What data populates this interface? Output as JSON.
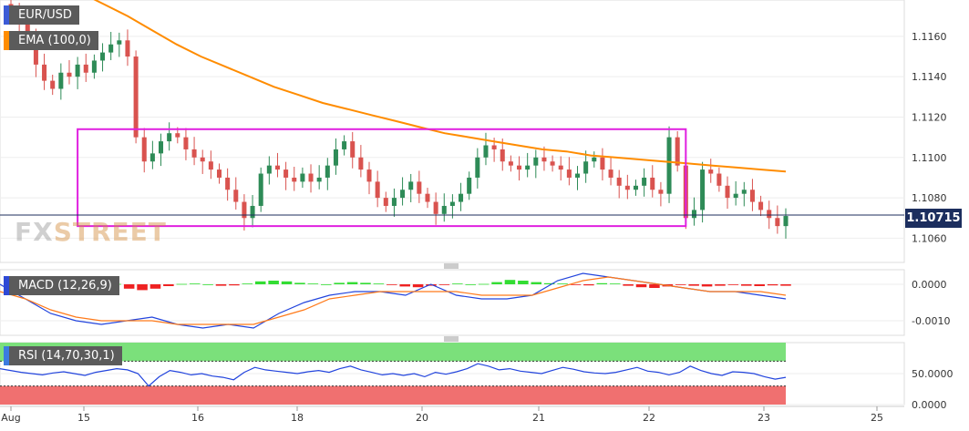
{
  "chart_data": {
    "type": "candlestick",
    "symbol": "EUR/USD",
    "indicator_label": "EMA (100,0)",
    "macd_label": "MACD (12,26,9)",
    "rsi_label": "RSI (14,70,30,1)",
    "last_price": "1.10715",
    "watermark": {
      "part1": "FX",
      "part2": "STREET"
    },
    "x_ticks": [
      "Aug",
      "15",
      "16",
      "18",
      "20",
      "21",
      "22",
      "23",
      "25"
    ],
    "price_axis": {
      "ylim": [
        1.1048,
        1.1178
      ],
      "ticks": [
        "1.1060",
        "1.1080",
        "1.1100",
        "1.1120",
        "1.1140",
        "1.1160"
      ]
    },
    "macd_axis": {
      "ylim": [
        -0.0014,
        0.0004
      ],
      "ticks": [
        "0.0000",
        "-0.0010"
      ]
    },
    "rsi_axis": {
      "ylim": [
        0,
        100
      ],
      "ticks": [
        "50.0000",
        "0.0000"
      ],
      "overbought": 70,
      "oversold": 30
    },
    "range_box": {
      "start": 8,
      "end": 81,
      "high": 1.1114,
      "low": 1.1066
    },
    "close_series": [
      1.1172,
      1.1168,
      1.116,
      1.1146,
      1.1138,
      1.1134,
      1.1142,
      1.114,
      1.1146,
      1.1142,
      1.1148,
      1.1152,
      1.1156,
      1.1158,
      1.115,
      1.111,
      1.1098,
      1.1102,
      1.1108,
      1.1112,
      1.111,
      1.1104,
      1.11,
      1.1098,
      1.1094,
      1.109,
      1.1084,
      1.1078,
      1.107,
      1.1076,
      1.1092,
      1.1096,
      1.1094,
      1.109,
      1.1088,
      1.1092,
      1.1088,
      1.109,
      1.1096,
      1.1104,
      1.1108,
      1.11,
      1.1094,
      1.1088,
      1.108,
      1.1076,
      1.108,
      1.1084,
      1.1088,
      1.1082,
      1.1078,
      1.1072,
      1.1076,
      1.1078,
      1.1082,
      1.109,
      1.11,
      1.1106,
      1.1104,
      1.1098,
      1.1096,
      1.1094,
      1.1096,
      1.11,
      1.1098,
      1.1096,
      1.1094,
      1.109,
      1.1092,
      1.1098,
      1.11,
      1.1094,
      1.109,
      1.1086,
      1.1084,
      1.1086,
      1.109,
      1.1084,
      1.1082,
      1.111,
      1.1096,
      1.107,
      1.1074,
      1.1094,
      1.1092,
      1.1086,
      1.108,
      1.1082,
      1.1084,
      1.1078,
      1.1074,
      1.107,
      1.1066,
      1.1071
    ],
    "ema_series": [
      1.1188,
      1.1182,
      1.1176,
      1.117,
      1.1163,
      1.1156,
      1.115,
      1.1145,
      1.114,
      1.1135,
      1.1131,
      1.1127,
      1.1124,
      1.1121,
      1.1118,
      1.1115,
      1.1112,
      1.111,
      1.1108,
      1.1106,
      1.1104,
      1.1103,
      1.1101,
      1.11,
      1.1099,
      1.1098,
      1.1097,
      1.1096,
      1.1095,
      1.1094,
      1.1093
    ],
    "macd_hist": [
      5e-05,
      3e-05,
      -1e-05,
      -4e-05,
      -3e-05,
      2e-05,
      4e-05,
      4e-05,
      1e-05,
      -0.00012,
      -0.00016,
      -0.00012,
      -5e-05,
      1e-05,
      2e-05,
      0.0,
      -4e-05,
      -3e-05,
      2e-05,
      8e-05,
      0.0001,
      8e-05,
      4e-05,
      2e-05,
      0.0,
      4e-05,
      6e-05,
      4e-05,
      2e-05,
      -2e-05,
      -6e-05,
      -8e-05,
      -4e-05,
      -1e-05,
      2e-05,
      0.0,
      1e-05,
      6e-05,
      0.00012,
      0.0001,
      6e-05,
      3e-05,
      2e-05,
      -2e-05,
      -3e-05,
      3e-05,
      2e-05,
      -4e-05,
      -8e-05,
      -0.0001,
      -6e-05,
      -2e-05,
      -4e-05,
      -6e-05,
      -4e-05,
      -2e-05,
      -4e-05,
      -5e-05,
      -3e-05,
      -4e-05
    ],
    "macd_line": [
      0.0,
      -0.0004,
      -0.0008,
      -0.001,
      -0.0011,
      -0.001,
      -0.0009,
      -0.0011,
      -0.0012,
      -0.0011,
      -0.0012,
      -0.0008,
      -0.0005,
      -0.0003,
      -0.0002,
      -0.0002,
      -0.0003,
      0.0,
      -0.0003,
      -0.0004,
      -0.0004,
      -0.0003,
      0.0001,
      0.0003,
      0.0002,
      0.0001,
      0.0,
      -0.0001,
      -0.0002,
      -0.0002,
      -0.0003,
      -0.0004
    ],
    "signal_line": [
      -0.0002,
      -0.0004,
      -0.0007,
      -0.0009,
      -0.001,
      -0.001,
      -0.001,
      -0.0011,
      -0.0011,
      -0.0011,
      -0.0011,
      -0.0009,
      -0.0007,
      -0.0004,
      -0.0003,
      -0.0002,
      -0.0002,
      -0.0002,
      -0.0002,
      -0.0003,
      -0.0003,
      -0.0003,
      -0.0001,
      0.0001,
      0.0002,
      0.0001,
      0.0,
      -0.0001,
      -0.0002,
      -0.0002,
      -0.0002,
      -0.0003
    ],
    "rsi_series": [
      58,
      55,
      52,
      50,
      48,
      51,
      53,
      50,
      47,
      52,
      55,
      58,
      56,
      50,
      30,
      45,
      55,
      52,
      48,
      50,
      46,
      44,
      40,
      52,
      60,
      56,
      54,
      52,
      50,
      53,
      55,
      52,
      58,
      62,
      56,
      52,
      48,
      50,
      47,
      50,
      45,
      52,
      49,
      53,
      58,
      66,
      62,
      56,
      58,
      54,
      52,
      50,
      55,
      60,
      57,
      53,
      51,
      50,
      52,
      56,
      60,
      54,
      52,
      48,
      52,
      62,
      55,
      50,
      47,
      53,
      52,
      50,
      45,
      41,
      44
    ]
  }
}
